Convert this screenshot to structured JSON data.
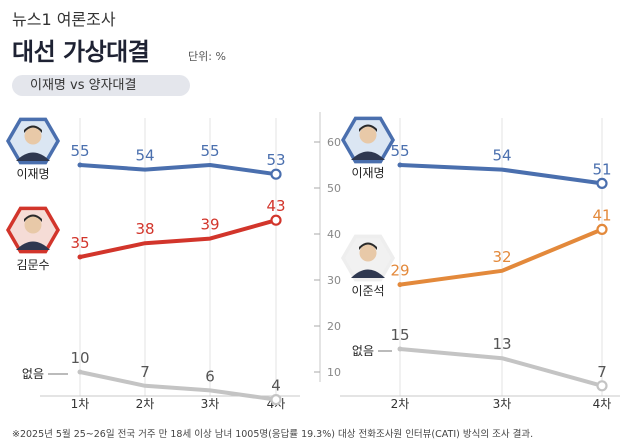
{
  "header": {
    "brand": "뉴스1 여론조사",
    "title": "대선 가상대결",
    "unit": "단위: %",
    "matchup": "이재명 vs 양자대결"
  },
  "footnote": "※2025년 5월 25~26일 전국 거주 만 18세 이상 남녀 1005명(응답률 19.3%) 대상 전화조사원 인터뷰(CATI) 방식의 조사 결과.",
  "colors": {
    "lee": "#4a6fae",
    "kim": "#d2352b",
    "lee_jun": "#e3893b",
    "none": "#c4c4c4"
  },
  "chart_data": [
    {
      "type": "line",
      "x": [
        "1차",
        "2차",
        "3차",
        "4차"
      ],
      "ylim": [
        0,
        60
      ],
      "series": [
        {
          "name": "이재명",
          "values": [
            55,
            54,
            55,
            53
          ]
        },
        {
          "name": "김문수",
          "values": [
            35,
            38,
            39,
            43
          ]
        },
        {
          "name": "없음",
          "values": [
            10,
            7,
            6,
            4
          ]
        }
      ]
    },
    {
      "type": "line",
      "x": [
        "2차",
        "3차",
        "4차"
      ],
      "ylim": [
        0,
        60
      ],
      "yticks": [
        10,
        20,
        30,
        40,
        50,
        60
      ],
      "series": [
        {
          "name": "이재명",
          "values": [
            55,
            54,
            51
          ]
        },
        {
          "name": "이준석",
          "values": [
            29,
            32,
            41
          ]
        },
        {
          "name": "없음",
          "values": [
            15,
            13,
            7
          ]
        }
      ]
    }
  ]
}
